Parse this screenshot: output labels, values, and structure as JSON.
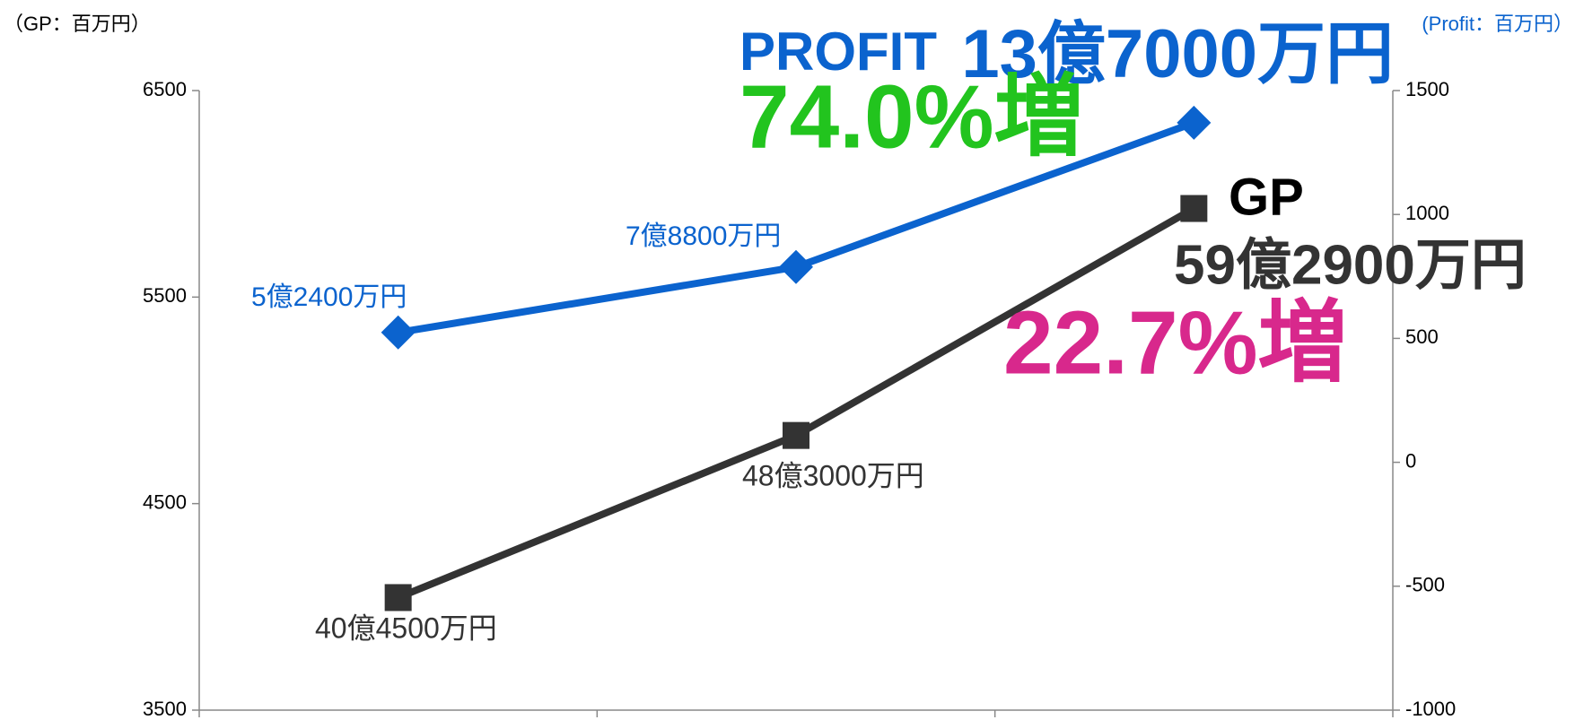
{
  "chart_data": {
    "type": "line",
    "y_label": "（GP：百万円）",
    "y2_label": "(Profit：百万円）",
    "categories": [
      null,
      null,
      null
    ],
    "ylim": [
      3500,
      6500
    ],
    "yticks": [
      3500,
      4500,
      5500,
      6500
    ],
    "y2lim": [
      -1000,
      1500
    ],
    "y2ticks": [
      -1000,
      -500,
      0,
      500,
      1000,
      1500
    ],
    "series": [
      {
        "name": "GP",
        "color": "#333333",
        "marker": "square",
        "axis": "y",
        "values": [
          4045,
          4830,
          5929
        ],
        "value_labels": [
          "40億4500万円",
          "48億3000万円",
          "59億2900万円"
        ]
      },
      {
        "name": "PROFIT",
        "color": "#0b63ce",
        "marker": "diamond",
        "axis": "y2",
        "values": [
          524,
          788,
          1370
        ],
        "value_labels": [
          "5億2400万円",
          "7億8800万円",
          "13億7000万円"
        ]
      }
    ],
    "annotations": [
      {
        "text": "74.0%増",
        "color": "#22c41e"
      },
      {
        "text": "22.7%増",
        "color": "#d8288c"
      }
    ]
  }
}
